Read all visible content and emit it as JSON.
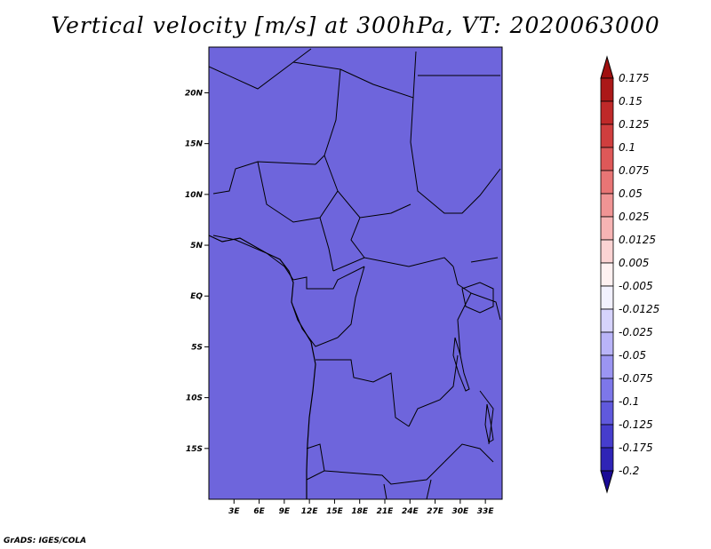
{
  "title": "Vertical velocity [m/s] at 300hPa, VT: 2020063000",
  "credit": "GrADS: IGES/COLA",
  "map": {
    "lon_range": [
      0,
      35
    ],
    "lat_range": [
      -20,
      24.5
    ],
    "lat_ticks": [
      {
        "value": 20,
        "label": "20N"
      },
      {
        "value": 15,
        "label": "15N"
      },
      {
        "value": 10,
        "label": "10N"
      },
      {
        "value": 5,
        "label": "5N"
      },
      {
        "value": 0,
        "label": "EQ"
      },
      {
        "value": -5,
        "label": "5S"
      },
      {
        "value": -10,
        "label": "10S"
      },
      {
        "value": -15,
        "label": "15S"
      }
    ],
    "lon_ticks": [
      {
        "value": 3,
        "label": "3E"
      },
      {
        "value": 6,
        "label": "6E"
      },
      {
        "value": 9,
        "label": "9E"
      },
      {
        "value": 12,
        "label": "12E"
      },
      {
        "value": 15,
        "label": "15E"
      },
      {
        "value": 18,
        "label": "18E"
      },
      {
        "value": 21,
        "label": "21E"
      },
      {
        "value": 24,
        "label": "24E"
      },
      {
        "value": 27,
        "label": "27E"
      },
      {
        "value": 30,
        "label": "30E"
      },
      {
        "value": 33,
        "label": "33E"
      }
    ]
  },
  "colorbar": {
    "levels": [
      {
        "label": "0.175",
        "color": "#a01010"
      },
      {
        "label": "0.15",
        "color": "#b52020"
      },
      {
        "label": "0.125",
        "color": "#c83232"
      },
      {
        "label": "0.1",
        "color": "#d84a4a"
      },
      {
        "label": "0.075",
        "color": "#e46666"
      },
      {
        "label": "0.05",
        "color": "#ec8484"
      },
      {
        "label": "0.025",
        "color": "#f4a4a4"
      },
      {
        "label": "0.0125",
        "color": "#f9c4c4"
      },
      {
        "label": "0.005",
        "color": "#fde2e2"
      },
      {
        "label": "-0.005",
        "color": "#ffffff"
      },
      {
        "label": "-0.0125",
        "color": "#e4e2fd"
      },
      {
        "label": "-0.025",
        "color": "#c8c4fa"
      },
      {
        "label": "-0.05",
        "color": "#aaa4f5"
      },
      {
        "label": "-0.075",
        "color": "#8c86ee"
      },
      {
        "label": "-0.1",
        "color": "#6e68e4"
      },
      {
        "label": "-0.125",
        "color": "#524ad6"
      },
      {
        "label": "-0.175",
        "color": "#3a30c4"
      },
      {
        "label": "-0.2",
        "color": "#2418a8"
      }
    ],
    "top_cap_color": "#a01010",
    "bottom_cap_color": "#1a0a96"
  }
}
